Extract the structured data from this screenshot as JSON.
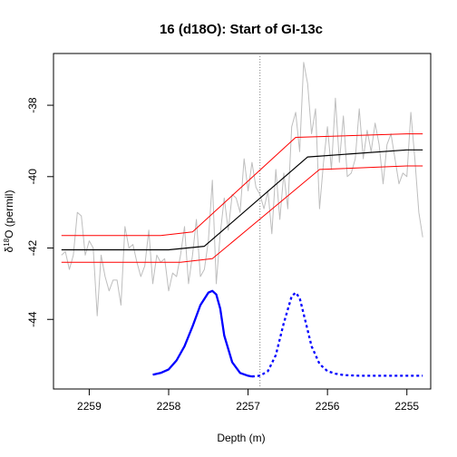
{
  "chart_data": {
    "type": "line",
    "title": "16 (d18O): Start of GI-13c",
    "xlabel": "Depth (m)",
    "ylabel_main": "δ",
    "ylabel_sup": "18",
    "ylabel_rest": "O (permil)",
    "x_reversed": true,
    "xlim": [
      2259.45,
      2254.7
    ],
    "ylim": [
      -45.95,
      -36.55
    ],
    "x_ticks": [
      2259,
      2258,
      2257,
      2256,
      2255
    ],
    "x_tick_labels": [
      "2259",
      "2258",
      "2257",
      "2256",
      "2255"
    ],
    "y_ticks": [
      -38,
      -40,
      -42,
      -44
    ],
    "y_tick_labels": [
      "-38",
      "-40",
      "-42",
      "-44"
    ],
    "grid": false,
    "transition_depth": 2256.85,
    "series": [
      {
        "color": "#bebebe",
        "style": "raw",
        "x": [
          2259.35,
          2259.3,
          2259.25,
          2259.2,
          2259.15,
          2259.1,
          2259.05,
          2259.0,
          2258.95,
          2258.9,
          2258.85,
          2258.8,
          2258.75,
          2258.7,
          2258.65,
          2258.6,
          2258.55,
          2258.5,
          2258.45,
          2258.4,
          2258.35,
          2258.3,
          2258.25,
          2258.2,
          2258.15,
          2258.1,
          2258.05,
          2258.0,
          2257.95,
          2257.9,
          2257.85,
          2257.8,
          2257.75,
          2257.7,
          2257.65,
          2257.6,
          2257.55,
          2257.5,
          2257.45,
          2257.4,
          2257.35,
          2257.3,
          2257.25,
          2257.2,
          2257.15,
          2257.1,
          2257.05,
          2257.0,
          2256.95,
          2256.9,
          2256.85,
          2256.8,
          2256.75,
          2256.7,
          2256.65,
          2256.6,
          2256.55,
          2256.5,
          2256.45,
          2256.4,
          2256.35,
          2256.3,
          2256.25,
          2256.2,
          2256.15,
          2256.1,
          2256.05,
          2256.0,
          2255.95,
          2255.9,
          2255.85,
          2255.8,
          2255.75,
          2255.7,
          2255.65,
          2255.6,
          2255.55,
          2255.5,
          2255.45,
          2255.4,
          2255.35,
          2255.3,
          2255.25,
          2255.2,
          2255.15,
          2255.1,
          2255.05,
          2255.0,
          2254.95,
          2254.9,
          2254.85,
          2254.8
        ],
        "values": [
          -42.2,
          -42.1,
          -42.6,
          -42.2,
          -41.0,
          -41.1,
          -42.2,
          -41.8,
          -42.0,
          -43.9,
          -42.2,
          -42.8,
          -43.2,
          -42.9,
          -42.9,
          -43.6,
          -41.4,
          -42.0,
          -41.9,
          -42.4,
          -42.8,
          -42.5,
          -41.5,
          -43.0,
          -42.2,
          -42.4,
          -42.3,
          -43.2,
          -42.7,
          -42.8,
          -42.2,
          -41.4,
          -43.0,
          -42.2,
          -41.2,
          -42.8,
          -42.6,
          -41.8,
          -40.1,
          -43.0,
          -41.6,
          -40.6,
          -41.5,
          -40.5,
          -40.6,
          -41.0,
          -39.5,
          -40.4,
          -39.6,
          -40.3,
          -40.5,
          -40.9,
          -40.4,
          -41.6,
          -39.8,
          -41.2,
          -39.9,
          -40.9,
          -38.6,
          -38.2,
          -39.3,
          -36.8,
          -37.4,
          -38.8,
          -38.1,
          -40.9,
          -39.6,
          -38.6,
          -39.8,
          -37.8,
          -39.6,
          -38.3,
          -40.0,
          -39.9,
          -39.5,
          -38.1,
          -39.5,
          -38.7,
          -39.3,
          -38.5,
          -39.1,
          -40.2,
          -39.1,
          -38.8,
          -39.5,
          -40.2,
          -39.9,
          -40.0,
          -38.2,
          -39.5,
          -41.0,
          -41.7
        ]
      },
      {
        "color": "#000000",
        "style": "ramp_mean",
        "x": [
          2259.35,
          2258.0,
          2257.55,
          2256.25,
          2255.0,
          2254.8
        ],
        "values": [
          -42.05,
          -42.05,
          -41.95,
          -39.45,
          -39.25,
          -39.25
        ]
      },
      {
        "color": "#ff0000",
        "style": "ramp_upper",
        "x": [
          2259.35,
          2258.1,
          2257.7,
          2256.4,
          2255.0,
          2254.8
        ],
        "values": [
          -41.65,
          -41.65,
          -41.55,
          -38.9,
          -38.8,
          -38.8
        ]
      },
      {
        "color": "#ff0000",
        "style": "ramp_lower",
        "x": [
          2259.35,
          2257.85,
          2257.45,
          2256.1,
          2255.0,
          2254.8
        ],
        "values": [
          -42.4,
          -42.4,
          -42.3,
          -39.8,
          -39.7,
          -39.7
        ]
      },
      {
        "color": "#0000ff",
        "style": "density_solid",
        "x": [
          2258.2,
          2258.1,
          2258.0,
          2257.9,
          2257.8,
          2257.7,
          2257.6,
          2257.5,
          2257.45,
          2257.4,
          2257.35,
          2257.3,
          2257.2,
          2257.1,
          2257.0,
          2256.95
        ],
        "values": [
          -45.55,
          -45.5,
          -45.4,
          -45.15,
          -44.75,
          -44.2,
          -43.6,
          -43.25,
          -43.2,
          -43.3,
          -43.7,
          -44.45,
          -45.2,
          -45.5,
          -45.58,
          -45.6
        ]
      },
      {
        "color": "#0000ff",
        "style": "density_dotted",
        "x": [
          2256.95,
          2256.85,
          2256.75,
          2256.65,
          2256.55,
          2256.45,
          2256.4,
          2256.35,
          2256.3,
          2256.2,
          2256.1,
          2256.0,
          2255.9,
          2255.8,
          2255.6,
          2255.4,
          2255.2,
          2255.0,
          2254.8
        ],
        "values": [
          -45.6,
          -45.58,
          -45.45,
          -45.0,
          -44.1,
          -43.35,
          -43.25,
          -43.4,
          -43.85,
          -44.75,
          -45.25,
          -45.45,
          -45.52,
          -45.56,
          -45.58,
          -45.58,
          -45.58,
          -45.58,
          -45.58
        ]
      }
    ]
  }
}
